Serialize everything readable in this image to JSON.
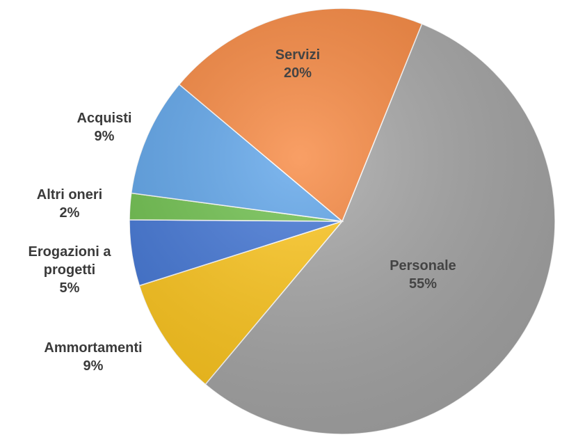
{
  "chart_data": {
    "type": "pie",
    "categories": [
      "Personale",
      "Ammortamenti",
      "Erogazioni a progetti",
      "Altri oneri",
      "Acquisti",
      "Servizi"
    ],
    "values": [
      55,
      9,
      5,
      2,
      9,
      20
    ],
    "value_labels": [
      "55%",
      "9%",
      "5%",
      "2%",
      "9%",
      "20%"
    ],
    "colors": [
      "#a5a5a5",
      "#ffc619",
      "#3f74d6",
      "#6cc04a",
      "#5ba3ea",
      "#f7843a"
    ]
  }
}
